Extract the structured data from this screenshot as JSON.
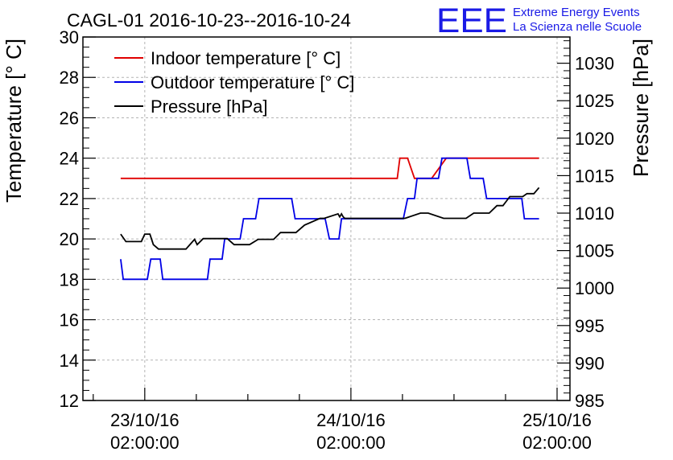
{
  "title": "CAGL-01 2016-10-23--2016-10-24",
  "logo": {
    "mark": "EEE",
    "line1": "Extreme Energy Events",
    "line2": "La Scienza nelle Scuole",
    "color": "#1a1ae6"
  },
  "chart_data": {
    "type": "line",
    "title": "CAGL-01 2016-10-23--2016-10-24",
    "x_axis": {
      "tick_labels": [
        {
          "date": "23/10/16",
          "time": "02:00:00",
          "hours": 0
        },
        {
          "date": "24/10/16",
          "time": "02:00:00",
          "hours": 24
        },
        {
          "date": "25/10/16",
          "time": "02:00:00",
          "hours": 48
        }
      ],
      "range_hours": [
        -7.2,
        49.5
      ]
    },
    "y_left": {
      "label": "Temperature [° C]",
      "range": [
        12,
        30
      ],
      "ticks": [
        12,
        14,
        16,
        18,
        20,
        22,
        24,
        26,
        28,
        30
      ]
    },
    "y_right": {
      "label": "Pressure [hPa]",
      "range": [
        985,
        1033.5
      ],
      "ticks": [
        985,
        990,
        995,
        1000,
        1005,
        1010,
        1015,
        1020,
        1025,
        1030
      ]
    },
    "grid": true,
    "legend_position": "top-left",
    "series": [
      {
        "name": "Indoor temperature [° C]",
        "color": "#e00000",
        "axis": "left",
        "x": [
          -2.8,
          29.4,
          29.7,
          30.6,
          31.4,
          33.4,
          35.1,
          35.9,
          45.9
        ],
        "y": [
          23,
          23,
          24,
          24,
          23,
          23,
          24,
          24,
          24
        ]
      },
      {
        "name": "Outdoor temperature [° C]",
        "color": "#0000e6",
        "axis": "left",
        "x": [
          -2.8,
          -2.5,
          -1.0,
          0.3,
          0.7,
          1.8,
          2.1,
          5.8,
          6.1,
          7.3,
          7.6,
          9.0,
          9.3,
          11.1,
          11.5,
          12.9,
          13.3,
          17.1,
          17.5,
          21.0,
          21.5,
          22.6,
          22.9,
          30.1,
          30.6,
          31.4,
          31.7,
          34.2,
          34.6,
          37.5,
          37.9,
          39.4,
          39.8,
          41.2,
          41.6,
          43.9,
          44.2,
          45.9
        ],
        "y": [
          19,
          18,
          18,
          18,
          19,
          19,
          18,
          18,
          18,
          18,
          19,
          19,
          20,
          20,
          21,
          21,
          22,
          22,
          21,
          21,
          20,
          20,
          21,
          21,
          22,
          22,
          23,
          23,
          24,
          24,
          23,
          23,
          22,
          22,
          22,
          22,
          21,
          21
        ]
      },
      {
        "name": "Pressure [hPa]",
        "color": "#000000",
        "axis": "right",
        "x": [
          -2.8,
          -2.2,
          -0.4,
          0.0,
          0.6,
          1.0,
          1.6,
          2.2,
          2.8,
          4.8,
          5.8,
          6.1,
          6.8,
          7.4,
          9.6,
          10.4,
          12.2,
          13.2,
          15.0,
          15.8,
          17.6,
          18.6,
          20.4,
          20.9,
          22.5,
          22.7,
          22.9,
          23.1,
          23.3,
          30.3,
          32.1,
          33.0,
          34.8,
          35.6,
          37.4,
          38.3,
          40.1,
          41.0,
          41.7,
          42.5,
          44.0,
          44.5,
          45.3,
          45.9
        ],
        "y": [
          1007.2,
          1006.2,
          1006.2,
          1007.2,
          1007.2,
          1005.8,
          1005.2,
          1005.2,
          1005.2,
          1005.2,
          1006.5,
          1005.8,
          1006.6,
          1006.6,
          1006.6,
          1005.8,
          1005.8,
          1006.5,
          1006.5,
          1007.4,
          1007.4,
          1008.4,
          1009.3,
          1009.3,
          1009.9,
          1009.5,
          1009.9,
          1009.5,
          1009.3,
          1009.3,
          1010.0,
          1010.0,
          1009.3,
          1009.3,
          1009.3,
          1010.0,
          1010.0,
          1011.0,
          1011.0,
          1012.2,
          1012.2,
          1012.6,
          1012.6,
          1013.4
        ]
      }
    ]
  }
}
